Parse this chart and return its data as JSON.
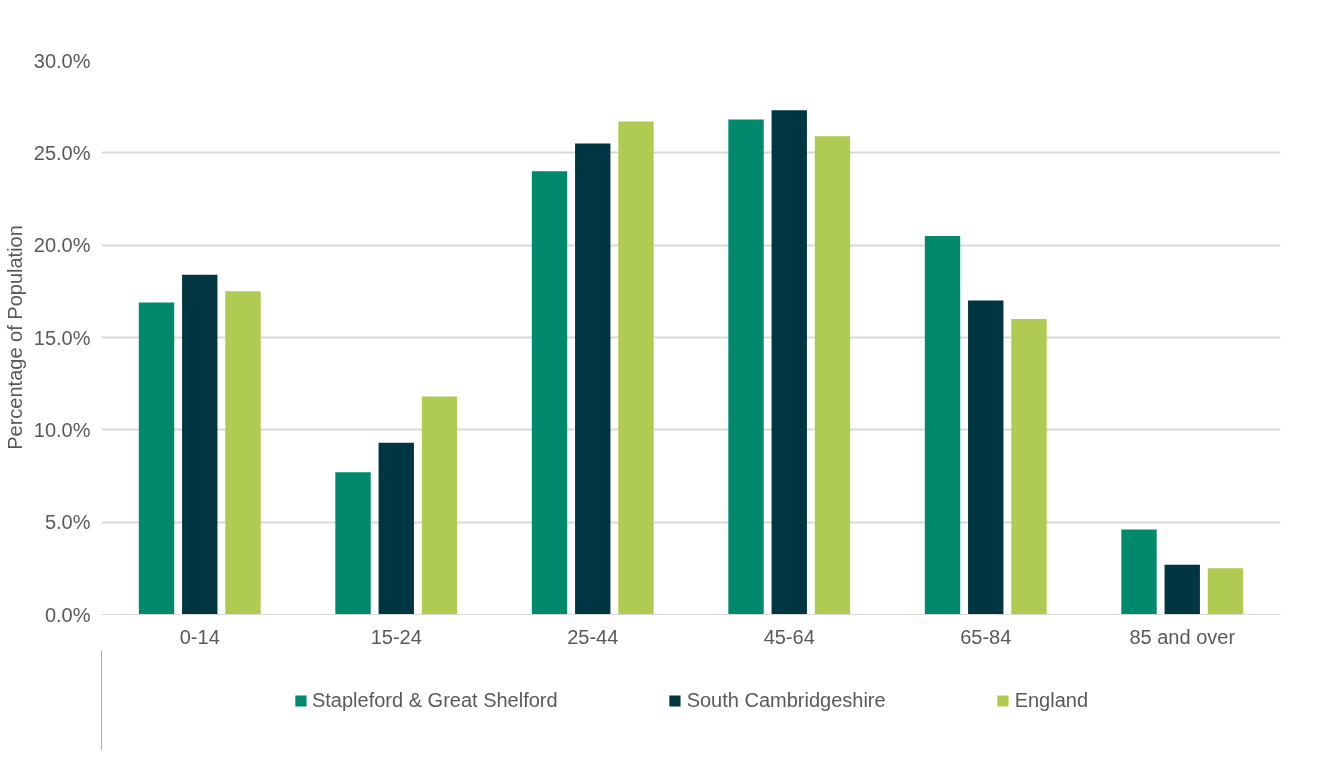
{
  "chart_data": {
    "type": "bar",
    "ylabel": "Percentage of Population",
    "categories": [
      "0-14",
      "15-24",
      "25-44",
      "45-64",
      "65-84",
      "85 and over"
    ],
    "series": [
      {
        "name": "Stapleford & Great Shelford",
        "color": "#00896a",
        "values": [
          16.9,
          7.7,
          24.0,
          26.8,
          20.5,
          4.6
        ]
      },
      {
        "name": "South Cambridgeshire",
        "color": "#003641",
        "values": [
          18.4,
          9.3,
          25.5,
          27.3,
          17.0,
          2.7
        ]
      },
      {
        "name": "England",
        "color": "#afcb52",
        "values": [
          17.5,
          11.8,
          26.7,
          25.9,
          16.0,
          2.5
        ]
      }
    ],
    "ylim": [
      0,
      30
    ],
    "yticks": [
      {
        "value": 0,
        "label": "0.0%"
      },
      {
        "value": 5,
        "label": "5.0%"
      },
      {
        "value": 10,
        "label": "10.0%"
      },
      {
        "value": 15,
        "label": "15.0%"
      },
      {
        "value": 20,
        "label": "20.0%"
      },
      {
        "value": 25,
        "label": "25.0%"
      },
      {
        "value": 30,
        "label": "30.0%"
      }
    ],
    "grid": "y",
    "legend": "bottom"
  }
}
